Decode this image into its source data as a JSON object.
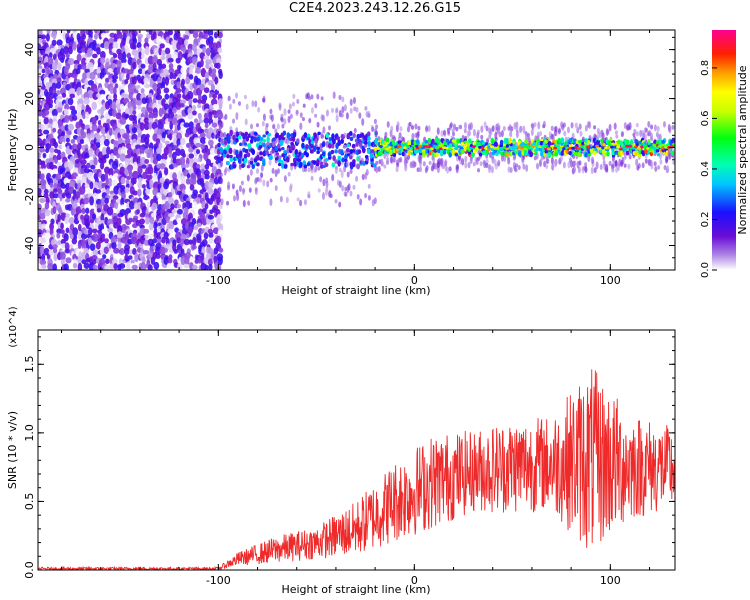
{
  "title": "C2E4.2023.243.12.26.G15",
  "colors": {
    "spectrum_purple": "#7b2fe0",
    "snr_line": "#ee2a2a"
  },
  "chart_data": [
    {
      "type": "heatmap",
      "xlabel": "Height of straight line (km)",
      "ylabel": "Frequency (Hz)",
      "xlim": [
        -192,
        133
      ],
      "ylim": [
        -50,
        48
      ],
      "xticks": [
        "-100",
        "0",
        "100"
      ],
      "yticks": [
        "40",
        "20",
        "0",
        "-20",
        "-40"
      ],
      "colorbar": {
        "label": "Normalized spectral amplitude",
        "ticks": [
          "0.0",
          "0.2",
          "0.4",
          "0.6",
          "0.8"
        ],
        "range": [
          0.0,
          0.95
        ]
      },
      "regions": [
        {
          "x": [
            -192,
            -100
          ],
          "freq": [
            -50,
            48
          ],
          "amplitude": [
            0.0,
            0.2
          ],
          "pattern": "noise"
        },
        {
          "x": [
            -100,
            -20
          ],
          "freq": [
            -8,
            6
          ],
          "amplitude": [
            0.1,
            0.45
          ],
          "pattern": "band"
        },
        {
          "x": [
            -20,
            133
          ],
          "freq": [
            -3,
            3
          ],
          "amplitude": [
            0.2,
            0.95
          ],
          "pattern": "line"
        }
      ]
    },
    {
      "type": "line",
      "xlabel": "Height of straight line (km)",
      "ylabel": "SNR (10 * v/v)",
      "multiplier": "(x10^4)",
      "xlim": [
        -192,
        133
      ],
      "ylim": [
        0,
        1.75
      ],
      "xticks": [
        "-100",
        "0",
        "100"
      ],
      "yticks": [
        "0.0",
        "0.5",
        "1.0",
        "1.5"
      ],
      "series": [
        {
          "x": [
            -192,
            -160,
            -130,
            -100,
            -90,
            -70,
            -50,
            -30,
            -10,
            10,
            30,
            50,
            70,
            90,
            110,
            133
          ],
          "y": [
            0.01,
            0.01,
            0.01,
            0.01,
            0.08,
            0.15,
            0.2,
            0.3,
            0.5,
            0.65,
            0.72,
            0.76,
            0.78,
            0.8,
            0.76,
            0.74
          ],
          "spread": [
            0.01,
            0.01,
            0.01,
            0.01,
            0.05,
            0.1,
            0.12,
            0.2,
            0.3,
            0.35,
            0.3,
            0.35,
            0.35,
            0.7,
            0.4,
            0.3
          ]
        }
      ]
    }
  ]
}
